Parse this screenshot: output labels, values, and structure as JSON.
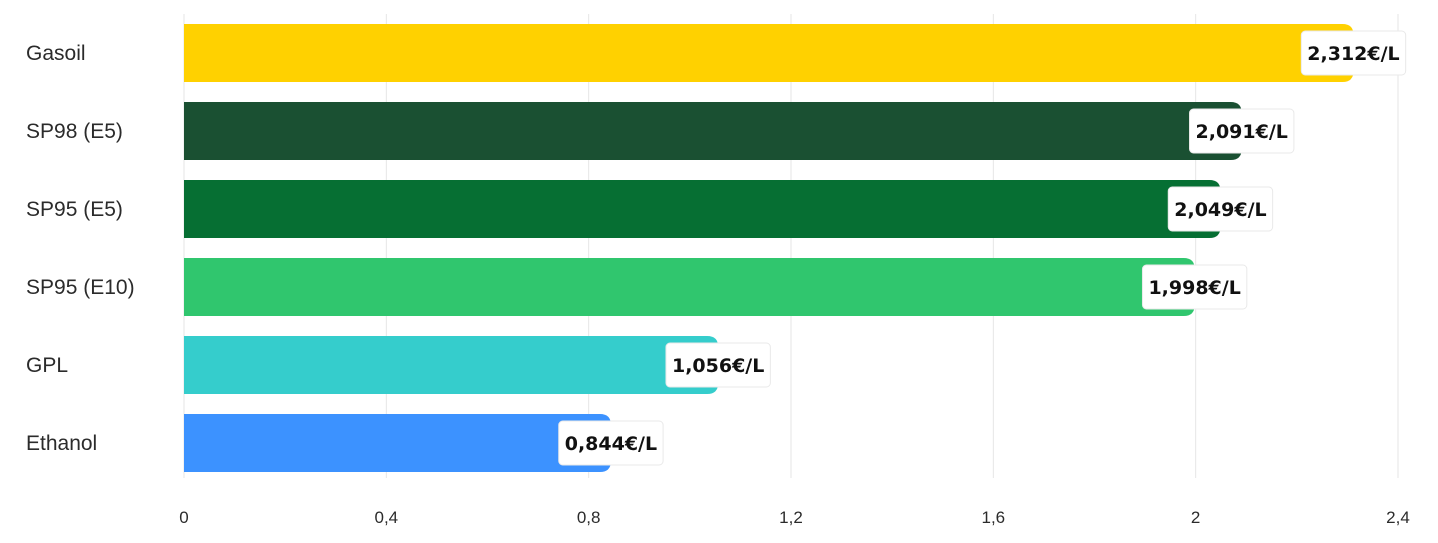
{
  "chart_data": {
    "type": "bar",
    "orientation": "horizontal",
    "title": "",
    "xlabel": "",
    "ylabel": "",
    "categories": [
      "Gasoil",
      "SP98 (E5)",
      "SP95 (E5)",
      "SP95 (E10)",
      "GPL",
      "Ethanol"
    ],
    "values": [
      2.312,
      2.091,
      2.049,
      1.998,
      1.056,
      0.844
    ],
    "data_labels": [
      "2,312€/L",
      "2,091€/L",
      "2,049€/L",
      "1,998€/L",
      "1,056€/L",
      "0,844€/L"
    ],
    "colors": [
      "#FFD100",
      "#1A5032",
      "#066F33",
      "#30C66E",
      "#35CDCC",
      "#3C92FF"
    ],
    "xlim": [
      0,
      2.4
    ],
    "x_ticks": [
      0,
      0.4,
      0.8,
      1.2,
      1.6,
      2,
      2.4
    ],
    "x_tick_labels": [
      "0",
      "0,4",
      "0,8",
      "1,2",
      "1,6",
      "2",
      "2,4"
    ],
    "grid": "vertical",
    "legend": "none"
  }
}
